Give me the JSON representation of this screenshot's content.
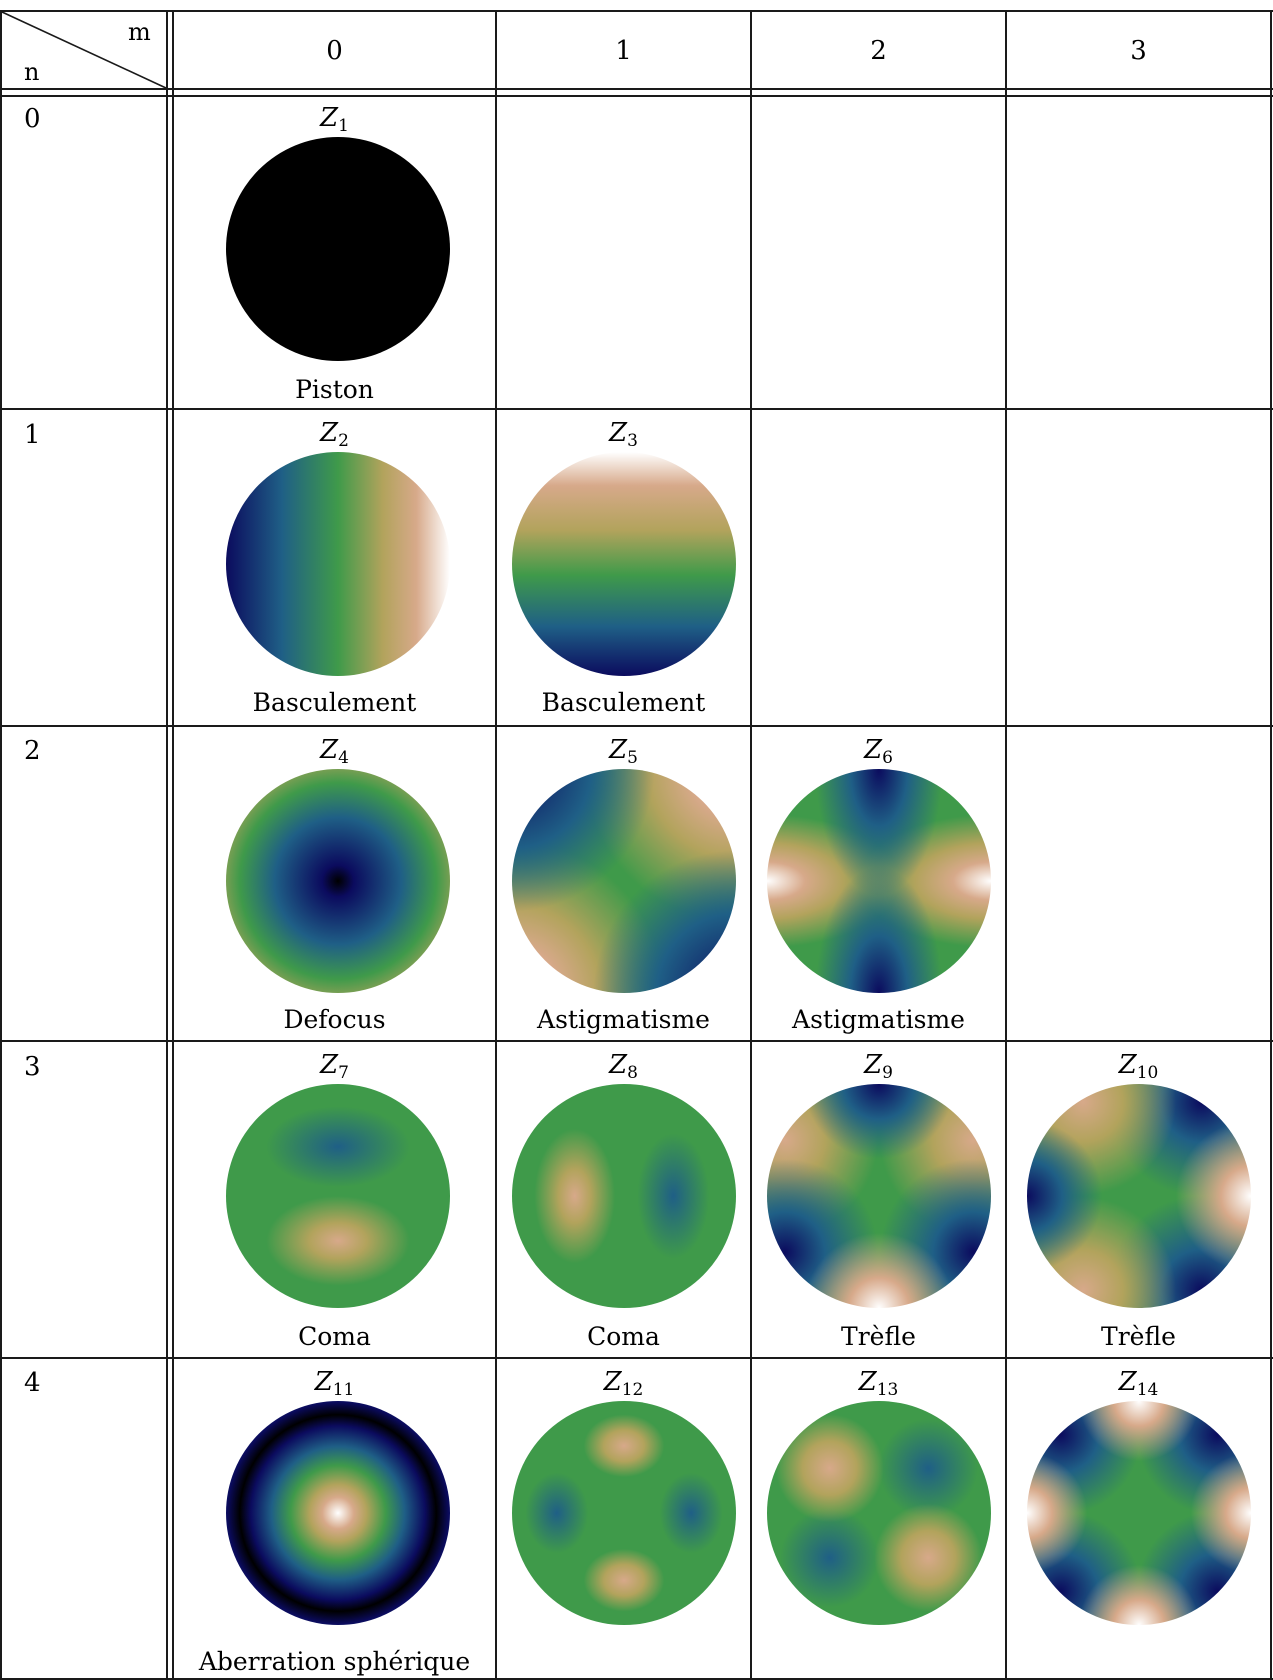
{
  "header": {
    "m_label": "m",
    "n_label": "n",
    "columns": [
      "0",
      "1",
      "2",
      "3"
    ]
  },
  "rows": [
    "0",
    "1",
    "2",
    "3",
    "4"
  ],
  "cells": [
    {
      "z": "Z",
      "idx": "1",
      "caption": "Piston",
      "pattern": "piston"
    },
    {
      "z": "Z",
      "idx": "2",
      "caption": "Basculement",
      "pattern": "tilt-x"
    },
    {
      "z": "Z",
      "idx": "3",
      "caption": "Basculement",
      "pattern": "tilt-y"
    },
    {
      "z": "Z",
      "idx": "4",
      "caption": "Defocus",
      "pattern": "defocus"
    },
    {
      "z": "Z",
      "idx": "5",
      "caption": "Astigmatisme",
      "pattern": "astig-oblique"
    },
    {
      "z": "Z",
      "idx": "6",
      "caption": "Astigmatisme",
      "pattern": "astig-vertical"
    },
    {
      "z": "Z",
      "idx": "7",
      "caption": "Coma",
      "pattern": "coma-y"
    },
    {
      "z": "Z",
      "idx": "8",
      "caption": "Coma",
      "pattern": "coma-x"
    },
    {
      "z": "Z",
      "idx": "9",
      "caption": "Trèfle",
      "pattern": "trefoil-y"
    },
    {
      "z": "Z",
      "idx": "10",
      "caption": "Trèfle",
      "pattern": "trefoil-x"
    },
    {
      "z": "Z",
      "idx": "11",
      "caption": "Aberration sphérique",
      "pattern": "spherical"
    },
    {
      "z": "Z",
      "idx": "12",
      "caption": "",
      "pattern": "secondary-astig-a"
    },
    {
      "z": "Z",
      "idx": "13",
      "caption": "",
      "pattern": "secondary-astig-b"
    },
    {
      "z": "Z",
      "idx": "14",
      "caption": "",
      "pattern": "quadrafoil"
    }
  ],
  "colormap": [
    "#0b0b5e",
    "#1f5f86",
    "#3f9a4a",
    "#b2a35c",
    "#d7a98a",
    "#ffffff"
  ]
}
